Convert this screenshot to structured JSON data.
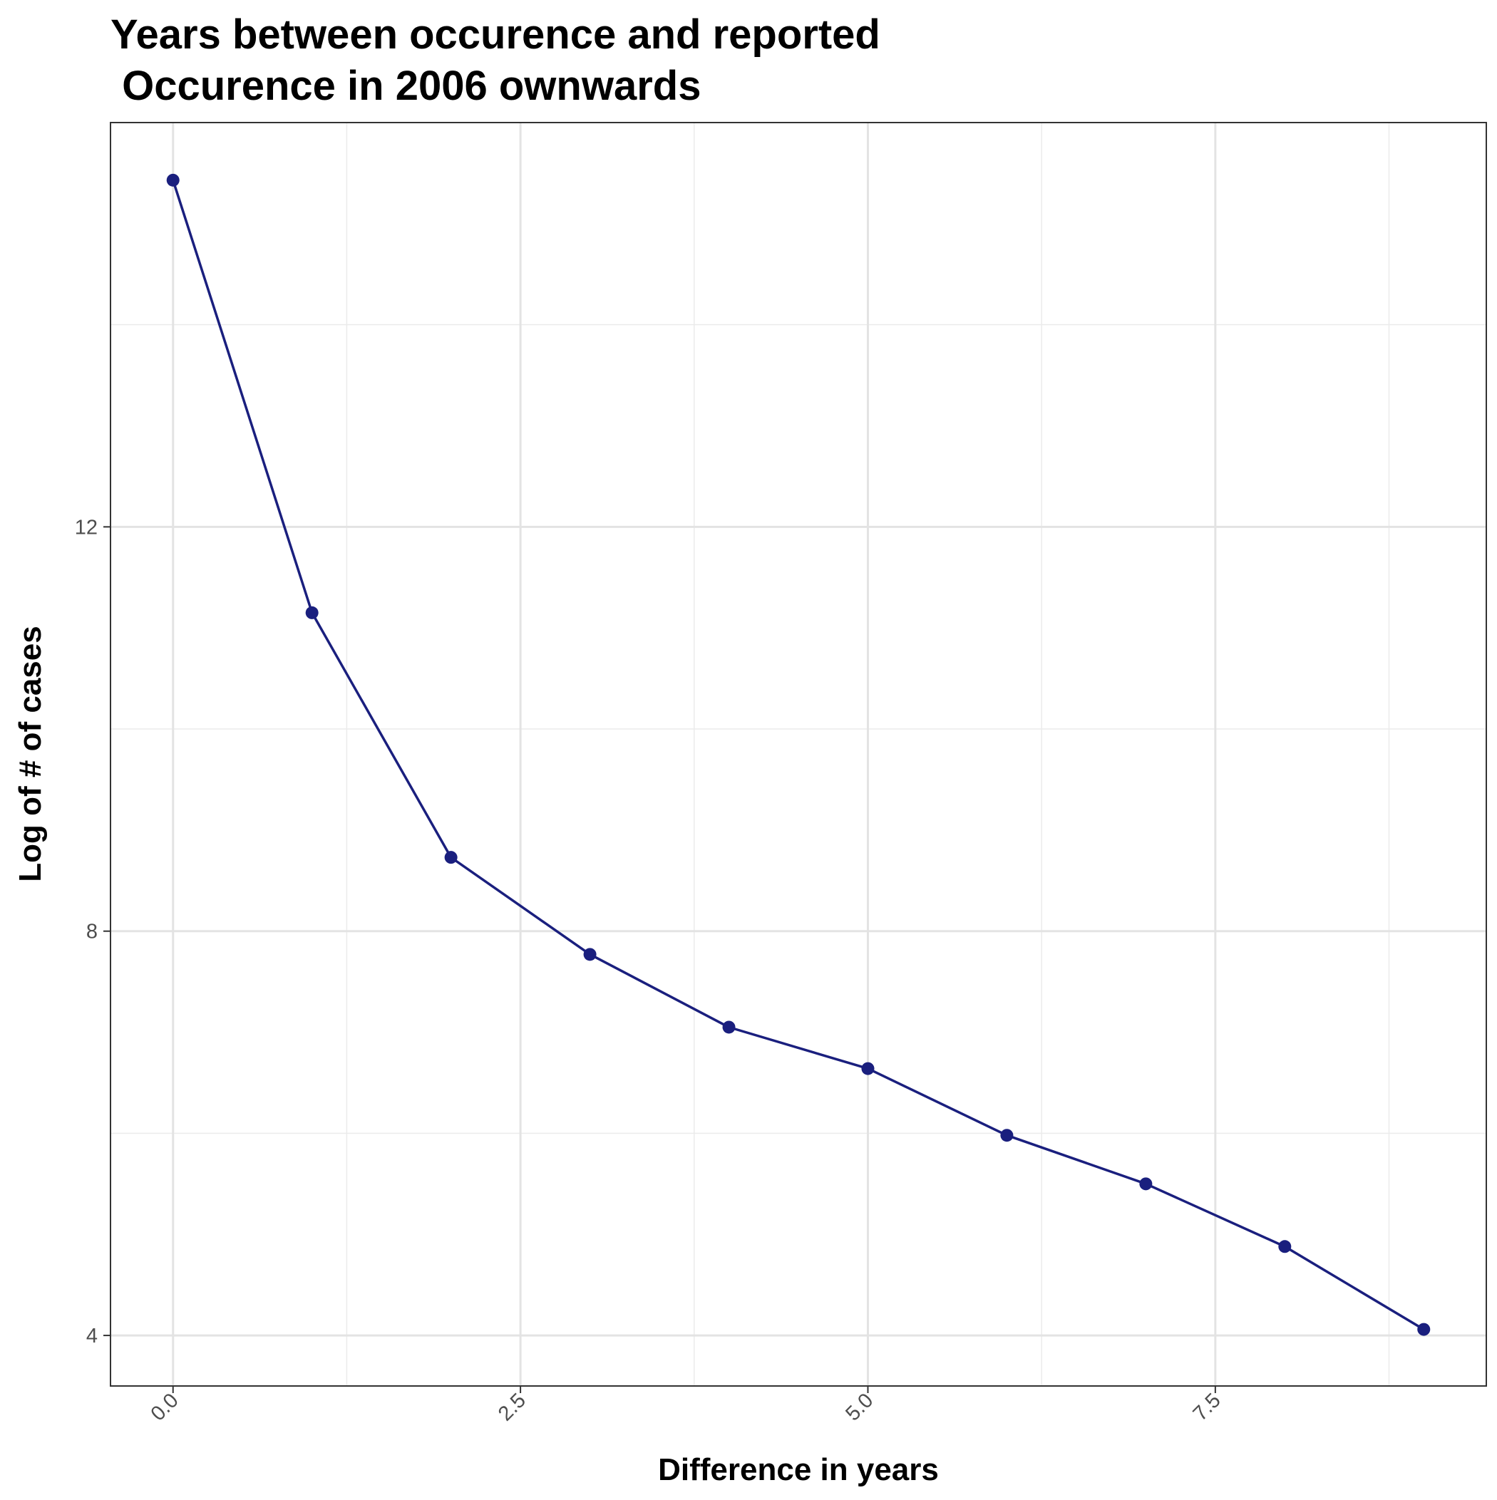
{
  "chart_data": {
    "type": "line",
    "title_lines": [
      "Years between occurence and reported",
      " Occurence in 2006 ownwards"
    ],
    "xlabel": "Difference in years",
    "ylabel": "Log of # of cases",
    "x_ticks": [
      {
        "value": 0.0,
        "label": "0.0"
      },
      {
        "value": 2.5,
        "label": "2.5"
      },
      {
        "value": 5.0,
        "label": "5.0"
      },
      {
        "value": 7.5,
        "label": "7.5"
      }
    ],
    "y_ticks": [
      {
        "value": 4,
        "label": "4"
      },
      {
        "value": 8,
        "label": "8"
      },
      {
        "value": 12,
        "label": "12"
      }
    ],
    "x_minor_breaks": [
      1.25,
      3.75,
      6.25,
      8.75
    ],
    "y_minor_breaks": [
      6,
      10,
      14
    ],
    "xlim": [
      -0.45,
      9.45
    ],
    "ylim": [
      3.5,
      16.0
    ],
    "grid": true,
    "theme": "bw",
    "series": [
      {
        "color": "#1a1f7e",
        "x": [
          0,
          1,
          2,
          3,
          4,
          5,
          6,
          7,
          8,
          9
        ],
        "y": [
          15.43,
          11.15,
          8.73,
          7.77,
          7.05,
          6.64,
          5.98,
          5.5,
          4.88,
          4.06
        ]
      }
    ]
  }
}
